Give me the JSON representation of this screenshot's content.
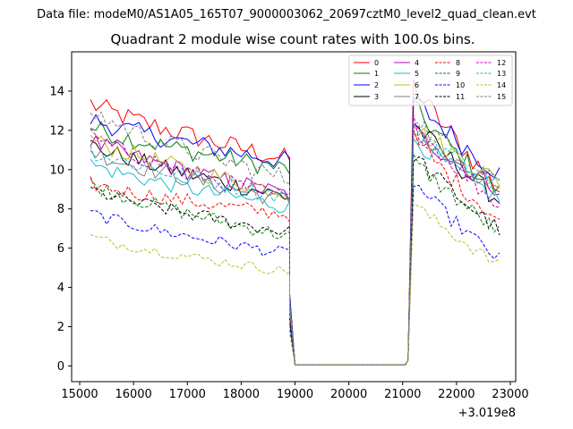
{
  "chart_data": {
    "type": "line",
    "suptitle": "Data file: modeM0/AS1A05_165T07_9000003062_20697cztM0_level2_quad_clean.evt",
    "title": "Quadrant 2 module wise count rates with 100.0s bins.",
    "xlabel": "",
    "ylabel": "",
    "x_offset_label": "+3.019e8",
    "xlim": [
      14850,
      23100
    ],
    "ylim": [
      -0.8,
      16.0
    ],
    "xticks": [
      15000,
      16000,
      17000,
      18000,
      19000,
      20000,
      21000,
      22000,
      23000
    ],
    "xtick_labels": [
      "15000",
      "16000",
      "17000",
      "18000",
      "19000",
      "20000",
      "21000",
      "22000",
      "23000"
    ],
    "yticks": [
      0,
      2,
      4,
      6,
      8,
      10,
      12,
      14
    ],
    "ytick_labels": [
      "0",
      "2",
      "4",
      "6",
      "8",
      "10",
      "12",
      "14"
    ],
    "legend_position": "upper right",
    "segments": {
      "seg1": [
        15200,
        18850
      ],
      "drop": [
        18850,
        19000
      ],
      "gap_zero": [
        19000,
        21050
      ],
      "rise": [
        21050,
        21200
      ],
      "seg2": [
        21200,
        22750
      ],
      "bin_s": 100
    },
    "series": [
      {
        "name": "0",
        "color": "#ff0000",
        "dash": "solid",
        "level1": [
          13.4,
          10.5
        ],
        "level2": [
          14.3,
          9.0
        ]
      },
      {
        "name": "1",
        "color": "#008000",
        "dash": "solid",
        "level1": [
          12.2,
          10.0
        ],
        "level2": [
          13.2,
          8.8
        ]
      },
      {
        "name": "2",
        "color": "#0000ff",
        "dash": "solid",
        "level1": [
          12.6,
          10.4
        ],
        "level2": [
          13.6,
          9.8
        ]
      },
      {
        "name": "3",
        "color": "#000000",
        "dash": "solid",
        "level1": [
          11.3,
          8.6
        ],
        "level2": [
          12.4,
          8.4
        ]
      },
      {
        "name": "4",
        "color": "#bf00bf",
        "dash": "solid",
        "level1": [
          11.5,
          8.7
        ],
        "level2": [
          12.0,
          9.0
        ]
      },
      {
        "name": "5",
        "color": "#17becf",
        "dash": "solid",
        "level1": [
          10.3,
          8.1
        ],
        "level2": [
          11.6,
          8.5
        ]
      },
      {
        "name": "6",
        "color": "#bcbd22",
        "dash": "solid",
        "level1": [
          11.6,
          8.8
        ],
        "level2": [
          12.2,
          9.4
        ]
      },
      {
        "name": "7",
        "color": "#808080",
        "dash": "solid",
        "level1": [
          11.0,
          8.4
        ],
        "level2": [
          12.0,
          8.6
        ]
      },
      {
        "name": "8",
        "color": "#ff0000",
        "dash": "dashed",
        "level1": [
          9.3,
          7.7
        ],
        "level2": [
          11.6,
          7.4
        ]
      },
      {
        "name": "9",
        "color": "#008000",
        "dash": "dashed",
        "level1": [
          9.3,
          6.6
        ],
        "level2": [
          10.5,
          6.8
        ]
      },
      {
        "name": "10",
        "color": "#0000ff",
        "dash": "dashed",
        "level1": [
          7.8,
          5.7
        ],
        "level2": [
          9.4,
          5.4
        ]
      },
      {
        "name": "11",
        "color": "#000000",
        "dash": "dashed",
        "level1": [
          9.0,
          6.8
        ],
        "level2": [
          10.8,
          6.9
        ]
      },
      {
        "name": "12",
        "color": "#bf00bf",
        "dash": "dashed",
        "level1": [
          11.7,
          8.5
        ],
        "level2": [
          12.4,
          8.2
        ]
      },
      {
        "name": "13",
        "color": "#17becf",
        "dash": "dashed",
        "level1": [
          11.0,
          8.6
        ],
        "level2": [
          12.2,
          9.3
        ]
      },
      {
        "name": "14",
        "color": "#bcbd22",
        "dash": "dashed",
        "level1": [
          6.6,
          4.8
        ],
        "level2": [
          8.3,
          5.1
        ]
      },
      {
        "name": "15",
        "color": "#808080",
        "dash": "dashed",
        "level1": [
          13.0,
          9.5
        ],
        "level2": [
          12.6,
          9.6
        ]
      }
    ]
  }
}
